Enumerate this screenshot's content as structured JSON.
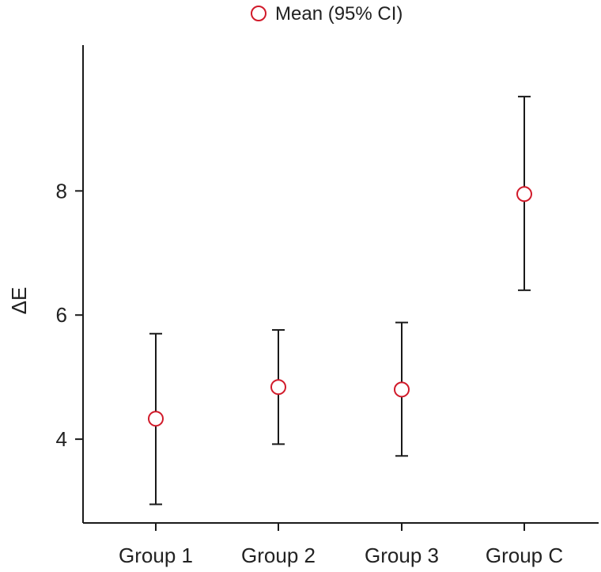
{
  "chart_data": {
    "type": "scatter",
    "subtype": "mean-with-error-bars",
    "title": "",
    "xlabel": "",
    "ylabel": "ΔE",
    "categories": [
      "Group 1",
      "Group 2",
      "Group 3",
      "Group C"
    ],
    "series": [
      {
        "name": "Mean (95% CI)",
        "values": [
          4.33,
          4.84,
          4.8,
          7.95
        ],
        "ci_lower": [
          2.95,
          3.92,
          3.73,
          6.4
        ],
        "ci_upper": [
          5.7,
          5.76,
          5.88,
          9.52
        ]
      }
    ],
    "ylim": [
      2.65,
      10.35
    ],
    "yticks": [
      4,
      6,
      8
    ],
    "grid": false,
    "legend_position": "top-center",
    "colors": {
      "marker": "#d11a2a",
      "errorbar": "#1a1a1a",
      "axis": "#1a1a1a"
    }
  }
}
